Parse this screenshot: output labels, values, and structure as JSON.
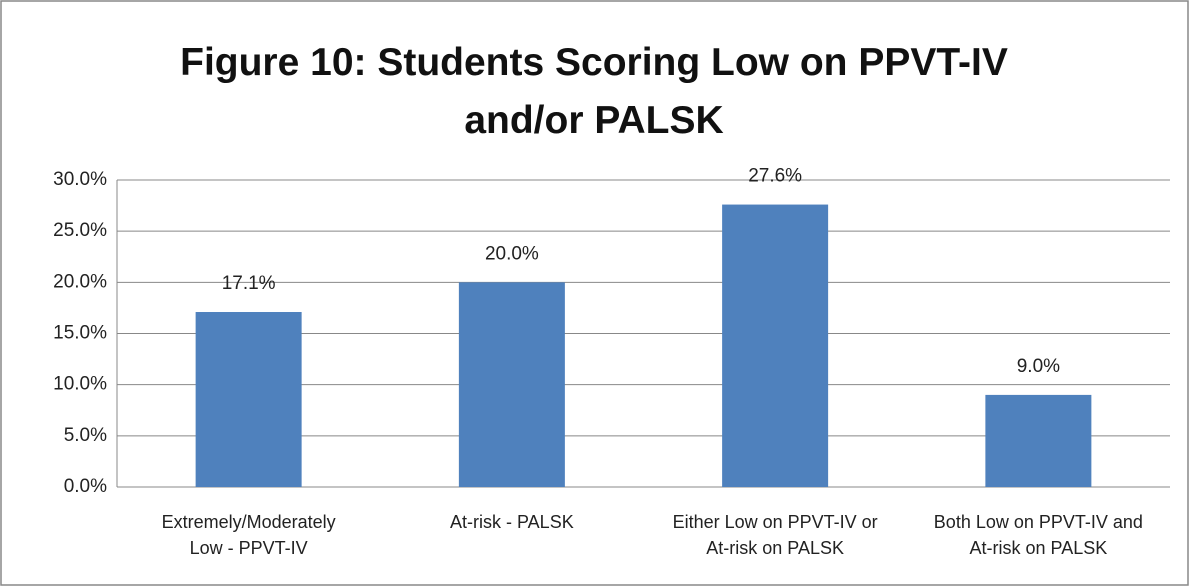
{
  "chart_data": {
    "type": "bar",
    "title": "Figure 10: Students Scoring Low on PPVT-IV and/or PALSK",
    "categories": [
      "Extremely/Moderately Low - PPVT-IV",
      "At-risk - PALSK",
      "Either Low on PPVT-IV or At-risk on PALSK",
      "Both Low on PPVT-IV and At-risk on PALSK"
    ],
    "values": [
      17.1,
      20.0,
      27.6,
      9.0
    ],
    "value_labels": [
      "17.1%",
      "20.0%",
      "27.6%",
      "9.0%"
    ],
    "color": "#4f81bd",
    "ylim": [
      0,
      30
    ],
    "yticks": [
      {
        "value": 0,
        "label": "0.0%"
      },
      {
        "value": 5,
        "label": "5.0%"
      },
      {
        "value": 10,
        "label": "10.0%"
      },
      {
        "value": 15,
        "label": "15.0%"
      },
      {
        "value": 20,
        "label": "20.0%"
      },
      {
        "value": 25,
        "label": "25.0%"
      },
      {
        "value": 30,
        "label": "30.0%"
      }
    ],
    "grid": true
  }
}
